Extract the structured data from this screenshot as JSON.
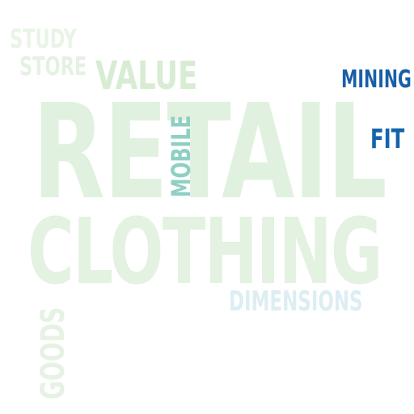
{
  "word_cloud": {
    "words": [
      {
        "key": "retail",
        "text": "RETAIL",
        "color": "#e1f1df"
      },
      {
        "key": "clothing",
        "text": "CLOTHING",
        "color": "#e3f2e1"
      },
      {
        "key": "value",
        "text": "VALUE",
        "color": "#d8ecd3"
      },
      {
        "key": "study",
        "text": "STUDY",
        "color": "#e9f4e6"
      },
      {
        "key": "store",
        "text": "STORE",
        "color": "#e5f2e3"
      },
      {
        "key": "mining",
        "text": "MINING",
        "color": "#1a5fa6"
      },
      {
        "key": "fit",
        "text": "FIT",
        "color": "#1464aa"
      },
      {
        "key": "dimensions",
        "text": "DIMENSIONS",
        "color": "#dceef3"
      },
      {
        "key": "mobile",
        "text": "MOBILE",
        "color": "#8fcfc4"
      },
      {
        "key": "goods",
        "text": "GOODS",
        "color": "#e6f2e3"
      }
    ]
  }
}
